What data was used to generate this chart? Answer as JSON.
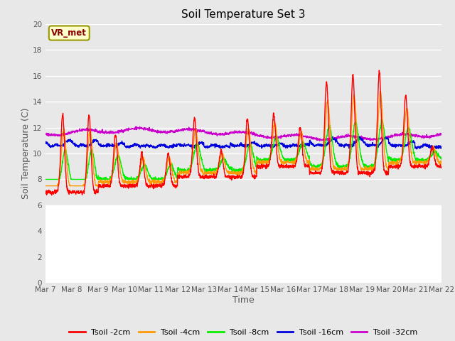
{
  "title": "Soil Temperature Set 3",
  "xlabel": "Time",
  "ylabel": "Soil Temperature (C)",
  "ylim": [
    0,
    20
  ],
  "yticks": [
    0,
    2,
    4,
    6,
    8,
    10,
    12,
    14,
    16,
    18,
    20
  ],
  "plot_bg_upper": "#e8e8e8",
  "plot_bg_lower": "#ffffff",
  "fig_bg": "#e8e8e8",
  "grid_color": "#ffffff",
  "annotation_text": "VR_met",
  "annotation_bg": "#ffffcc",
  "annotation_border": "#999900",
  "series_colors": {
    "Tsoil -2cm": "#ff0000",
    "Tsoil -4cm": "#ff9900",
    "Tsoil -8cm": "#00ee00",
    "Tsoil -16cm": "#0000dd",
    "Tsoil -32cm": "#cc00cc"
  },
  "x_tick_labels": [
    "Mar 7",
    "Mar 8",
    "Mar 9",
    "Mar 10",
    "Mar 11",
    "Mar 12",
    "Mar 13",
    "Mar 14",
    "Mar 15",
    "Mar 16",
    "Mar 17",
    "Mar 18",
    "Mar 19",
    "Mar 20",
    "Mar 21",
    "Mar 22"
  ],
  "start_day": 7,
  "end_day": 22
}
